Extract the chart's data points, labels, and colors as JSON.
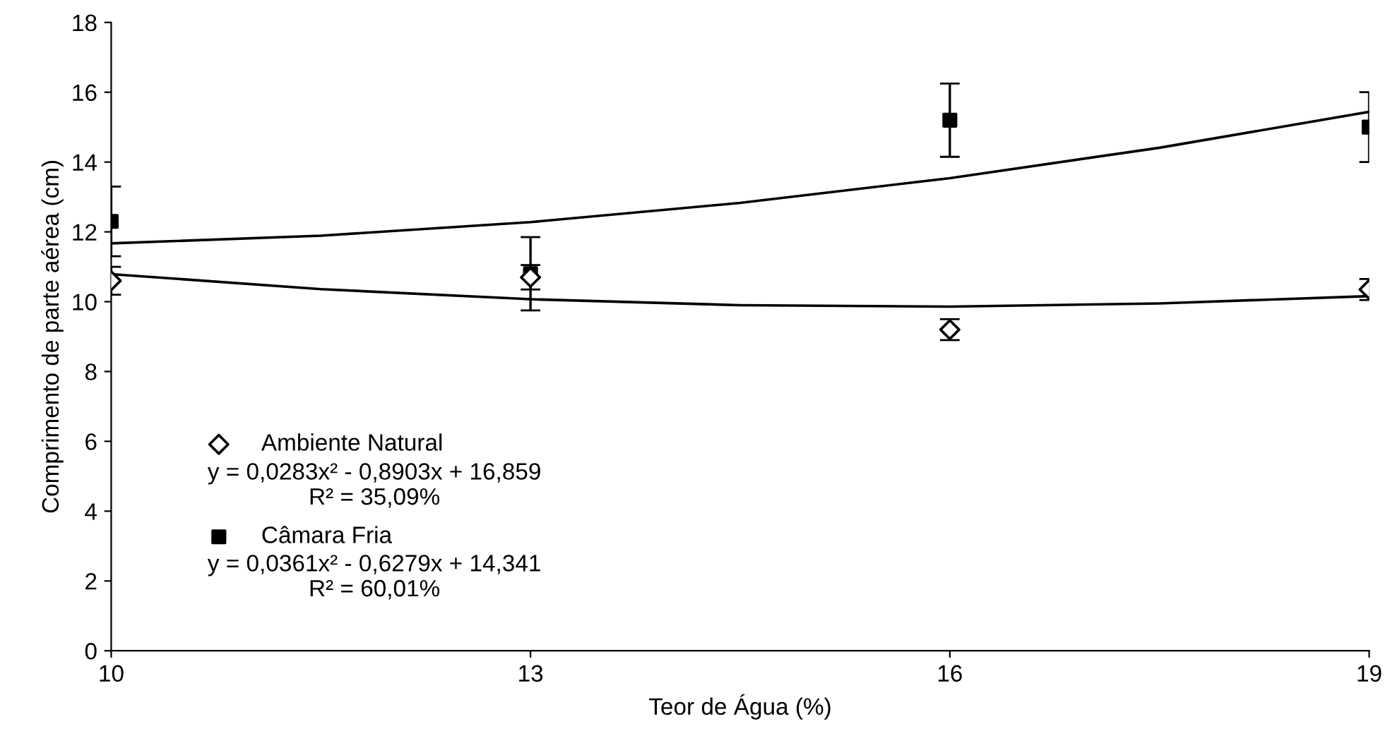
{
  "chart_data": {
    "type": "scatter",
    "xlabel": "Teor de Água (%)",
    "ylabel": "Comprimento de parte aérea (cm)",
    "x": [
      10,
      13,
      16,
      19
    ],
    "series": [
      {
        "name": "Ambiente Natural",
        "color": "#000000",
        "marker": "diamond",
        "values": [
          10.6,
          10.7,
          9.2,
          10.35
        ],
        "errors": [
          0.4,
          0.35,
          0.3,
          0.3
        ]
      },
      {
        "name": "Câmara Fria",
        "color": "#000000",
        "marker": "square",
        "values": [
          12.3,
          10.8,
          15.2,
          15.0
        ],
        "errors": [
          1.0,
          1.05,
          1.05,
          1.0
        ]
      },
      {
        "type": "line",
        "color": "#000000",
        "x": [
          10,
          11.5,
          13,
          14.5,
          16,
          17.5,
          19
        ],
        "values": [
          10.79,
          10.36,
          10.07,
          9.9,
          9.86,
          9.95,
          10.16
        ]
      },
      {
        "type": "line",
        "color": "#000000",
        "x": [
          10,
          11.5,
          13,
          14.5,
          16,
          17.5,
          19
        ],
        "values": [
          11.67,
          11.89,
          12.28,
          12.83,
          13.54,
          14.41,
          15.44
        ]
      }
    ],
    "annotations": [
      "y = 0,0283x² - 0,8903x + 16,859",
      "R² = 35,09%",
      "y = 0,0361x² - 0,6279x + 14,341",
      "R² = 60,01%"
    ],
    "xlim": [
      10,
      19
    ],
    "xticks": [
      10,
      13,
      16,
      19
    ],
    "ylim": [
      0,
      18
    ],
    "yticks": [
      0,
      2,
      4,
      6,
      8,
      10,
      12,
      14,
      16,
      18
    ],
    "grid": false,
    "legend": "bottom left"
  }
}
